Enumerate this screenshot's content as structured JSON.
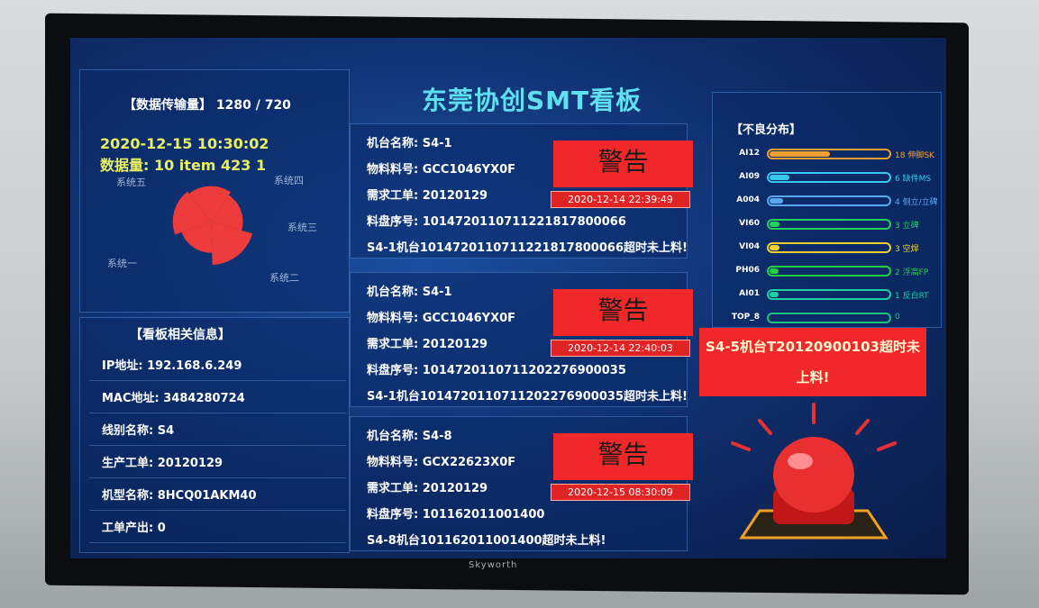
{
  "title": "东莞协创SMT看板",
  "brand": "Skyworth",
  "transfer": {
    "label": "【数据传输量】",
    "resolution": "1280 / 720",
    "datetime": "2020-12-15 10:30:02",
    "volume": "数据量: 10 item 423 1"
  },
  "chart_data": {
    "type": "pie",
    "variant": "rose",
    "categories": [
      "系统一",
      "系统二",
      "系统三",
      "系统四",
      "系统五"
    ],
    "values": [
      88,
      82,
      74,
      100,
      72
    ],
    "color": "#ee3b3b"
  },
  "info": {
    "title": "【看板相关信息】",
    "rows": [
      {
        "label": "IP地址:",
        "value": "192.168.6.249"
      },
      {
        "label": "MAC地址:",
        "value": "3484280724"
      },
      {
        "label": "线别名称:",
        "value": "S4"
      },
      {
        "label": "生产工单:",
        "value": "20120129"
      },
      {
        "label": "机型名称:",
        "value": "8HCQ01AKM40"
      },
      {
        "label": "工单产出:",
        "value": "0"
      }
    ]
  },
  "alarms": [
    {
      "machine": "机台名称:  S4-1",
      "material": "物料料号:  GCC1046YX0F",
      "order": "需求工单:  20120129",
      "reel": "料盘序号:  1014720110711221817800066",
      "message": "S4-1机台1014720110711221817800066超时未上料!",
      "badge": "警告",
      "time": "2020-12-14 22:39:49"
    },
    {
      "machine": "机台名称:  S4-1",
      "material": "物料料号:  GCC1046YX0F",
      "order": "需求工单:  20120129",
      "reel": "料盘序号:  1014720110711202276900035",
      "message": "S4-1机台1014720110711202276900035超时未上料!",
      "badge": "警告",
      "time": "2020-12-14 22:40:03"
    },
    {
      "machine": "机台名称:  S4-8",
      "material": "物料料号:  GCX22623X0F",
      "order": "需求工单:  20120129",
      "reel": "料盘序号:  101162011001400",
      "message": "S4-8机台101162011001400超时未上料!",
      "badge": "警告",
      "time": "2020-12-15 08:30:09"
    }
  ],
  "defects": {
    "title": "【不良分布】",
    "scale_max": 36,
    "items": [
      {
        "name": "AI12",
        "value": 18,
        "label": "18 伸脚SK",
        "color": "#f0a030"
      },
      {
        "name": "AI09",
        "value": 6,
        "label": "6 缺件MS",
        "color": "#38c8f0"
      },
      {
        "name": "A004",
        "value": 4,
        "label": "4 侧立/立碑",
        "color": "#58a8f0"
      },
      {
        "name": "VI60",
        "value": 3,
        "label": "3 立碑",
        "color": "#28d060"
      },
      {
        "name": "VI04",
        "value": 3,
        "label": "3 空焊",
        "color": "#f0d030"
      },
      {
        "name": "PH06",
        "value": 2,
        "label": "2 浮高FP",
        "color": "#20d040"
      },
      {
        "name": "AI01",
        "value": 1,
        "label": "1 反白RT",
        "color": "#20d0a0"
      },
      {
        "name": "TOP_8",
        "value": 0,
        "label": "0",
        "color": "#20c080"
      }
    ]
  },
  "big_alert": "S4-5机台T20120900103超时未上料!"
}
